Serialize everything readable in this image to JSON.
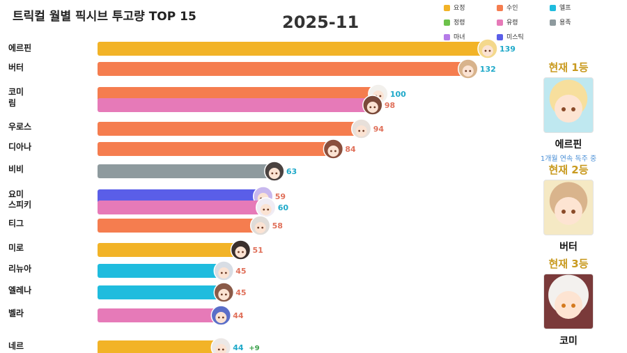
{
  "header": {
    "title": "트릭컬 월별 픽시브 투고량 TOP 15",
    "date": "2025-11"
  },
  "legend": [
    {
      "label": "요정",
      "color": "#f2b327"
    },
    {
      "label": "수인",
      "color": "#f57d4f"
    },
    {
      "label": "엘프",
      "color": "#1fbcde"
    },
    {
      "label": "정령",
      "color": "#6cc24a"
    },
    {
      "label": "유령",
      "color": "#e67ab8"
    },
    {
      "label": "용족",
      "color": "#8e9a9e"
    },
    {
      "label": "마녀",
      "color": "#b57be8"
    },
    {
      "label": "미스틱",
      "color": "#5a5ee8"
    }
  ],
  "chart_data": {
    "type": "bar",
    "orientation": "horizontal",
    "title": "트릭컬 월별 픽시브 투고량 TOP 15",
    "period": "2025-11",
    "xlim": [
      0,
      139
    ],
    "bars": [
      {
        "name": "에르핀",
        "value": 139,
        "race": "요정",
        "color": "#f2b327",
        "value_color": "#1fa9c9"
      },
      {
        "name": "버터",
        "value": 132,
        "race": "수인",
        "color": "#f57d4f",
        "value_color": "#1fa9c9"
      },
      {
        "name": "코미",
        "value": 100,
        "race": "수인",
        "color": "#f57d4f",
        "value_color": "#1fa9c9"
      },
      {
        "name": "림",
        "value": 98,
        "race": "유령",
        "color": "#e67ab8",
        "value_color": "#e0705a"
      },
      {
        "name": "우로스",
        "value": 94,
        "race": "수인",
        "color": "#f57d4f",
        "value_color": "#e0705a"
      },
      {
        "name": "디아나",
        "value": 84,
        "race": "수인",
        "color": "#f57d4f",
        "value_color": "#e0705a"
      },
      {
        "name": "비비",
        "value": 63,
        "race": "용족",
        "color": "#8e9a9e",
        "value_color": "#1fa9c9"
      },
      {
        "name": "요미",
        "value": 59,
        "race": "미스틱",
        "color": "#5a5ee8",
        "value_color": "#e0705a"
      },
      {
        "name": "스피키",
        "value": 60,
        "race": "유령",
        "color": "#e67ab8",
        "value_color": "#1fa9c9"
      },
      {
        "name": "티그",
        "value": 58,
        "race": "수인",
        "color": "#f57d4f",
        "value_color": "#e0705a"
      },
      {
        "name": "미로",
        "value": 51,
        "race": "요정",
        "color": "#f2b327",
        "value_color": "#e0705a"
      },
      {
        "name": "리뉴아",
        "value": 45,
        "race": "엘프",
        "color": "#1fbcde",
        "value_color": "#e0705a"
      },
      {
        "name": "엘레나",
        "value": 45,
        "race": "엘프",
        "color": "#1fbcde",
        "value_color": "#e0705a"
      },
      {
        "name": "벨라",
        "value": 44,
        "race": "유령",
        "color": "#e67ab8",
        "value_color": "#e0705a"
      },
      {
        "name": "네르",
        "value": 44,
        "race": "요정",
        "color": "#f2b327",
        "value_color": "#1fa9c9",
        "change": "+9"
      }
    ]
  },
  "ranking": {
    "first": {
      "title": "현재 1등",
      "name": "에르핀",
      "note": "1개월 연속 독주 중"
    },
    "second": {
      "title": "현재 2등",
      "name": "버터"
    },
    "third": {
      "title": "현재 3등",
      "name": "코미"
    }
  }
}
